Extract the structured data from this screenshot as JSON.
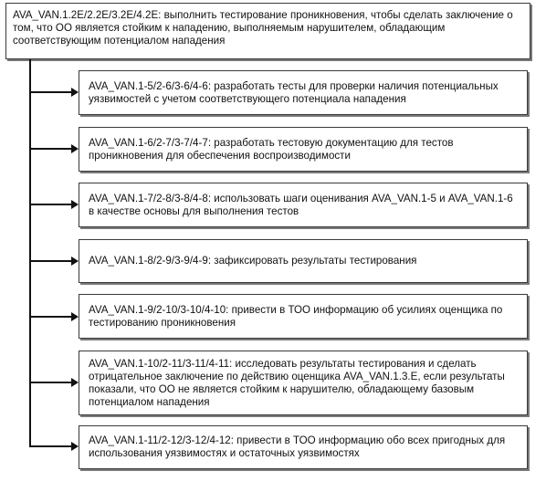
{
  "diagram": {
    "top_box": "AVA_VAN.1.2E/2.2E/3.2E/4.2E: выполнить тестирование проникновения, чтобы сделать заключение о том, что ОО является стойким к нападению, выполняемым нарушителем, обладающим соответствующим потенциалом нападения",
    "steps": [
      "AVA_VAN.1-5/2-6/3-6/4-6: разработать тесты для проверки наличия потенциальных уязвимостей с учетом соответствующего потенциала нападения",
      "AVA_VAN.1-6/2-7/3-7/4-7: разработать тестовую документацию для тестов проникновения для обеспечения воспроизводимости",
      "AVA_VAN.1-7/2-8/3-8/4-8: использовать шаги оценивания AVA_VAN.1-5 и AVA_VAN.1-6 в качестве основы для выполнения тестов",
      "AVA_VAN.1-8/2-9/3-9/4-9: зафиксировать результаты тестирования",
      "AVA_VAN.1-9/2-10/3-10/4-10: привести в ТОО информацию об усилиях оценщика по тестированию проникновения",
      "AVA_VAN.1-10/2-11/3-11/4-11: исследовать результаты тестирования и сделать отрицательное заключение по действию оценщика AVA_VAN.1.3.E, если результаты показали, что ОО не является стойким к нарушителю, обладающему базовым потенциалом нападения",
      "AVA_VAN.1-11/2-12/3-12/4-12: привести в ТОО информацию обо всех пригодных для использования уязвимостях и остаточных уязвимостях"
    ]
  }
}
